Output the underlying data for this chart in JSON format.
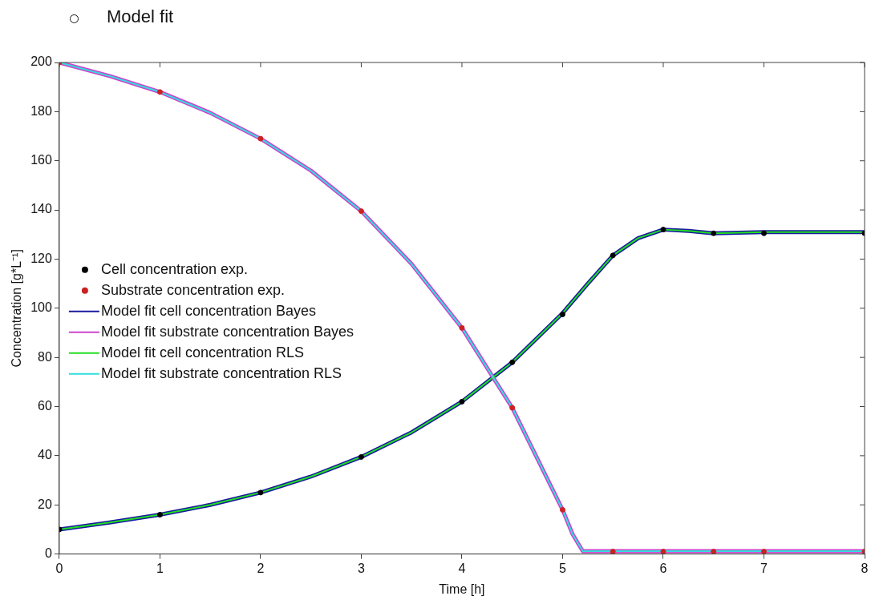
{
  "chart_data": {
    "type": "line",
    "title": "Model fit",
    "xlabel": "Time [h]",
    "ylabel": "Concentration [g*L⁻¹]",
    "xlim": [
      0,
      8
    ],
    "xticks": [
      0,
      1,
      2,
      3,
      4,
      5,
      6,
      7,
      8
    ],
    "ylim": [
      0,
      200
    ],
    "yticks": [
      0,
      20,
      40,
      60,
      80,
      100,
      120,
      140,
      160,
      180,
      200
    ],
    "grid": false,
    "legend": "left",
    "series": [
      {
        "name": "Cell concentration exp.",
        "type": "scatter",
        "marker": "circle",
        "color": "#000000",
        "x": [
          0,
          1,
          2,
          3,
          4,
          4.5,
          5,
          5.5,
          6,
          6.5,
          7,
          8
        ],
        "values": [
          10,
          16,
          25,
          39.5,
          62,
          78,
          97.5,
          121.5,
          132,
          130.5,
          130.5,
          130.5
        ]
      },
      {
        "name": "Substrate concentration exp.",
        "type": "scatter",
        "marker": "circle",
        "color": "#cc2222",
        "x": [
          0,
          1,
          2,
          3,
          4,
          4.5,
          5,
          5.5,
          6,
          6.5,
          7,
          8
        ],
        "values": [
          200,
          188,
          169,
          139.5,
          92,
          59.5,
          18,
          1,
          1,
          1,
          1,
          1
        ]
      },
      {
        "name": "Model fit cell concentration Bayes",
        "color": "#1a1aa0",
        "x": [
          0,
          0.5,
          1,
          1.5,
          2,
          2.5,
          3,
          3.5,
          4,
          4.5,
          5,
          5.25,
          5.5,
          5.75,
          6,
          6.25,
          6.5,
          7,
          8
        ],
        "values": [
          10,
          12.8,
          16,
          20,
          25,
          31.5,
          39.5,
          49.5,
          62,
          78,
          98,
          110,
          121.5,
          128.5,
          132,
          131.5,
          130.5,
          131,
          131
        ]
      },
      {
        "name": "Model fit substrate concentration Bayes",
        "color": "#cc44cc",
        "x": [
          0,
          0.5,
          1,
          1.5,
          2,
          2.5,
          3,
          3.5,
          4,
          4.5,
          5,
          5.1,
          5.2,
          8
        ],
        "values": [
          200,
          194.5,
          188,
          179.5,
          169,
          156,
          139.5,
          118,
          92,
          59.5,
          18,
          8,
          1.2,
          1.2
        ]
      },
      {
        "name": "Model fit cell concentration RLS",
        "color": "#22dd22",
        "x": [
          0,
          0.5,
          1,
          1.5,
          2,
          2.5,
          3,
          3.5,
          4,
          4.5,
          5,
          5.25,
          5.5,
          5.75,
          6,
          6.25,
          6.5,
          7,
          8
        ],
        "values": [
          10,
          12.8,
          16,
          20,
          25,
          31.5,
          39.5,
          49.5,
          62,
          78,
          98,
          110,
          121.5,
          128.5,
          132,
          131.5,
          130.5,
          131,
          131
        ]
      },
      {
        "name": "Model fit substrate concentration RLS",
        "color": "#33dddd",
        "x": [
          0,
          0.5,
          1,
          1.5,
          2,
          2.5,
          3,
          3.5,
          4,
          4.5,
          5,
          5.1,
          5.2,
          8
        ],
        "values": [
          200,
          194.5,
          188,
          179.5,
          169,
          156,
          139.5,
          118,
          92,
          59.5,
          18,
          8,
          1.2,
          1.2
        ]
      }
    ]
  }
}
